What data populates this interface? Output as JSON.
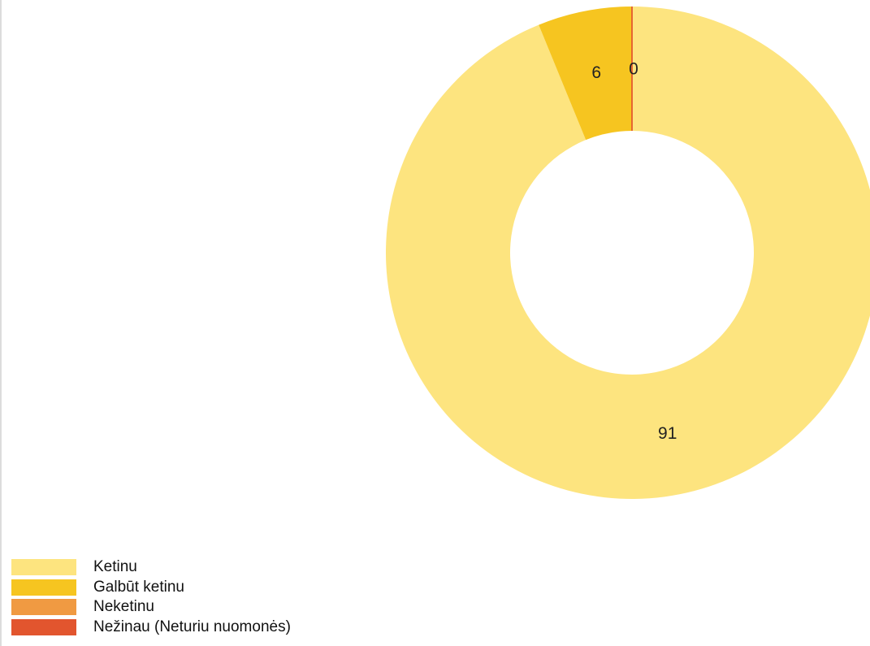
{
  "chart_data": {
    "type": "pie",
    "donut": true,
    "categories": [
      "Ketinu",
      "Galbūt ketinu",
      "Neketinu",
      "Nežinau (Neturiu nuomonės)"
    ],
    "values": [
      91,
      6,
      0,
      0
    ],
    "colors": [
      "#fde47f",
      "#f6c520",
      "#f09a42",
      "#e2552e"
    ],
    "data_labels": [
      "91",
      "6",
      "",
      "0"
    ],
    "legend_position": "bottom-left",
    "title": ""
  },
  "legend": {
    "items": [
      {
        "label": "Ketinu",
        "color": "#fde47f"
      },
      {
        "label": "Galbūt ketinu",
        "color": "#f6c520"
      },
      {
        "label": "Neketinu",
        "color": "#f09a42"
      },
      {
        "label": "Nežinau (Neturiu nuomonės)",
        "color": "#e2552e"
      }
    ]
  }
}
